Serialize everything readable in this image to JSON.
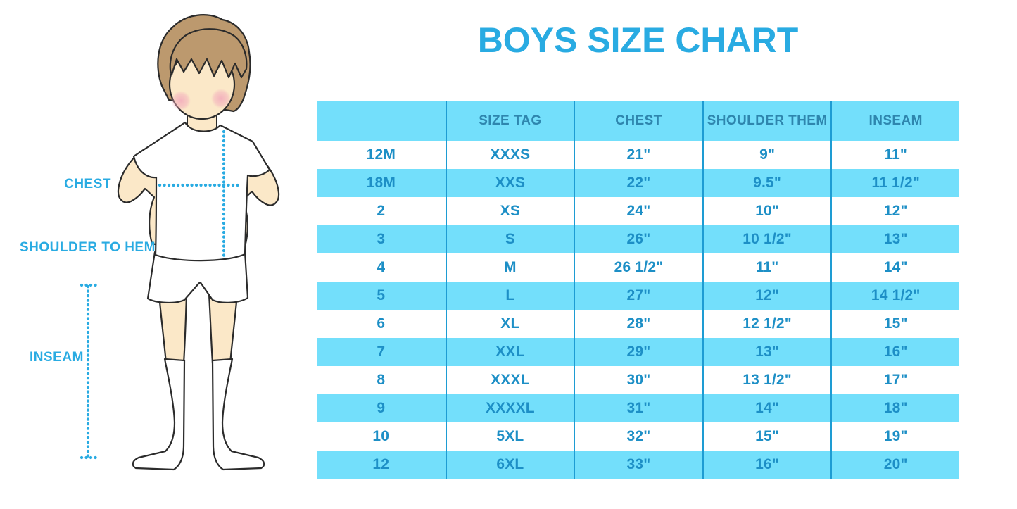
{
  "title": "BOYS SIZE CHART",
  "colors": {
    "accent": "#29ABE2",
    "row-alt": "#73DFFB",
    "divider": "#1E9CD3",
    "header-text": "#2E86AE",
    "cell-text": "#1D8FC6",
    "outline": "#2b2b2b",
    "skin": "#FBE8C8",
    "hair": "#BC996E",
    "blush": "#F2A9BB",
    "garment": "#FFFFFF"
  },
  "figure": {
    "description": "Cartoon boy in white t-shirt, shorts and knee socks with dotted measurement guides",
    "labels": {
      "chest": "CHEST",
      "shoulder_to_hem": "SHOULDER TO HEM",
      "inseam": "INSEAM"
    }
  },
  "chart_data": {
    "type": "table",
    "title": "BOYS SIZE CHART",
    "columns": [
      "",
      "SIZE TAG",
      "CHEST",
      "SHOULDER THEM",
      "INSEAM"
    ],
    "rows": [
      [
        "12M",
        "XXXS",
        "21\"",
        "9\"",
        "11\""
      ],
      [
        "18M",
        "XXS",
        "22\"",
        "9.5\"",
        "11 1/2\""
      ],
      [
        "2",
        "XS",
        "24\"",
        "10\"",
        "12\""
      ],
      [
        "3",
        "S",
        "26\"",
        "10 1/2\"",
        "13\""
      ],
      [
        "4",
        "M",
        "26 1/2\"",
        "11\"",
        "14\""
      ],
      [
        "5",
        "L",
        "27\"",
        "12\"",
        "14 1/2\""
      ],
      [
        "6",
        "XL",
        "28\"",
        "12 1/2\"",
        "15\""
      ],
      [
        "7",
        "XXL",
        "29\"",
        "13\"",
        "16\""
      ],
      [
        "8",
        "XXXL",
        "30\"",
        "13 1/2\"",
        "17\""
      ],
      [
        "9",
        "XXXXL",
        "31\"",
        "14\"",
        "18\""
      ],
      [
        "10",
        "5XL",
        "32\"",
        "15\"",
        "19\""
      ],
      [
        "12",
        "6XL",
        "33\"",
        "16\"",
        "20\""
      ]
    ]
  }
}
